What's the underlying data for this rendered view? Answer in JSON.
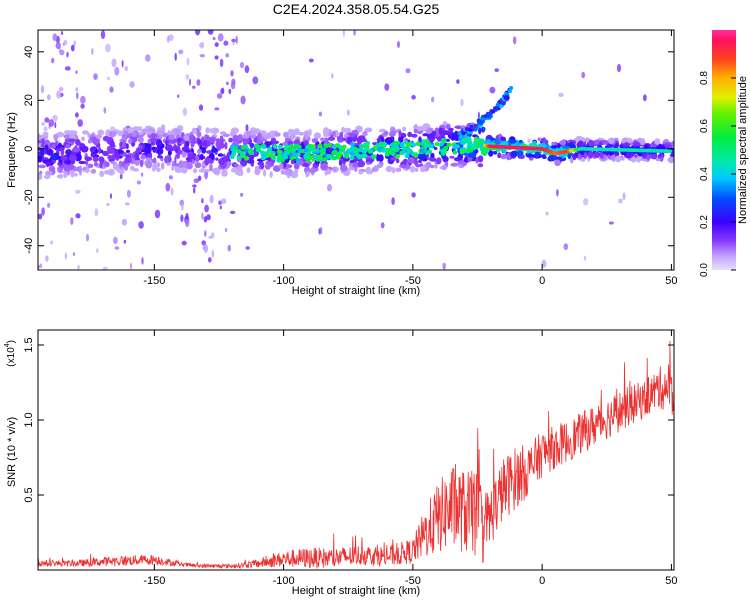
{
  "title": "C2E4.2024.358.05.54.G25",
  "chart_data": [
    {
      "type": "heatmap",
      "xlabel": "Height of straight line (km)",
      "ylabel": "Frequency (Hz)",
      "xlim": [
        -195,
        51
      ],
      "ylim": [
        -50,
        49
      ],
      "xticks": [
        -150,
        -100,
        -50,
        0,
        50
      ],
      "yticks": [
        -40,
        -20,
        0,
        20,
        40
      ],
      "colorbar": {
        "label": "Normalized spectral amplitude",
        "range": [
          0.0,
          1.0
        ],
        "ticks": [
          0.0,
          0.2,
          0.4,
          0.6,
          0.8
        ]
      },
      "ridge": {
        "description_points_x": [
          -195,
          -150,
          -100,
          -50,
          -25,
          -20,
          0,
          5,
          10,
          15,
          50
        ],
        "center_freq": [
          -3,
          0,
          -2,
          0,
          2,
          1,
          0,
          -2,
          -1,
          0,
          -1
        ],
        "amplitude": [
          0.25,
          0.2,
          0.25,
          0.3,
          0.45,
          0.95,
          0.95,
          0.85,
          0.9,
          0.45,
          0.45
        ]
      },
      "rising_branch": {
        "x": [
          -32,
          -25,
          -18,
          -12
        ],
        "freq": [
          5,
          10,
          16,
          24
        ]
      },
      "noise_band_x": [
        -145,
        -118
      ]
    },
    {
      "type": "line",
      "xlabel": "Height of straight line (km)",
      "ylabel": "SNR (10 * v/v)",
      "yscale_label": "(x10",
      "yscale_exp": "4",
      "xlim": [
        -195,
        51
      ],
      "ylim": [
        0,
        1.6
      ],
      "xticks": [
        -150,
        -100,
        -50,
        0,
        50
      ],
      "yticks": [
        0.5,
        1.0,
        1.5
      ],
      "series": [
        {
          "color": "#ee3030",
          "x": [
            -195,
            -180,
            -165,
            -150,
            -140,
            -130,
            -120,
            -110,
            -100,
            -90,
            -80,
            -70,
            -60,
            -50,
            -45,
            -40,
            -35,
            -30,
            -25,
            -22,
            -20,
            -15,
            -10,
            -5,
            0,
            10,
            20,
            30,
            40,
            45,
            50,
            51
          ],
          "envelope": [
            0.05,
            0.05,
            0.07,
            0.08,
            0.04,
            0.03,
            0.03,
            0.05,
            0.09,
            0.1,
            0.1,
            0.12,
            0.11,
            0.15,
            0.3,
            0.42,
            0.5,
            0.47,
            0.45,
            0.35,
            0.42,
            0.6,
            0.68,
            0.72,
            0.82,
            0.9,
            1.0,
            1.1,
            1.18,
            1.25,
            1.28,
            1.15
          ],
          "spread": [
            0.03,
            0.03,
            0.05,
            0.05,
            0.02,
            0.02,
            0.02,
            0.04,
            0.08,
            0.1,
            0.1,
            0.1,
            0.1,
            0.12,
            0.25,
            0.35,
            0.4,
            0.4,
            0.42,
            0.38,
            0.3,
            0.3,
            0.3,
            0.25,
            0.22,
            0.2,
            0.2,
            0.2,
            0.18,
            0.2,
            0.25,
            0.2
          ]
        }
      ]
    }
  ]
}
